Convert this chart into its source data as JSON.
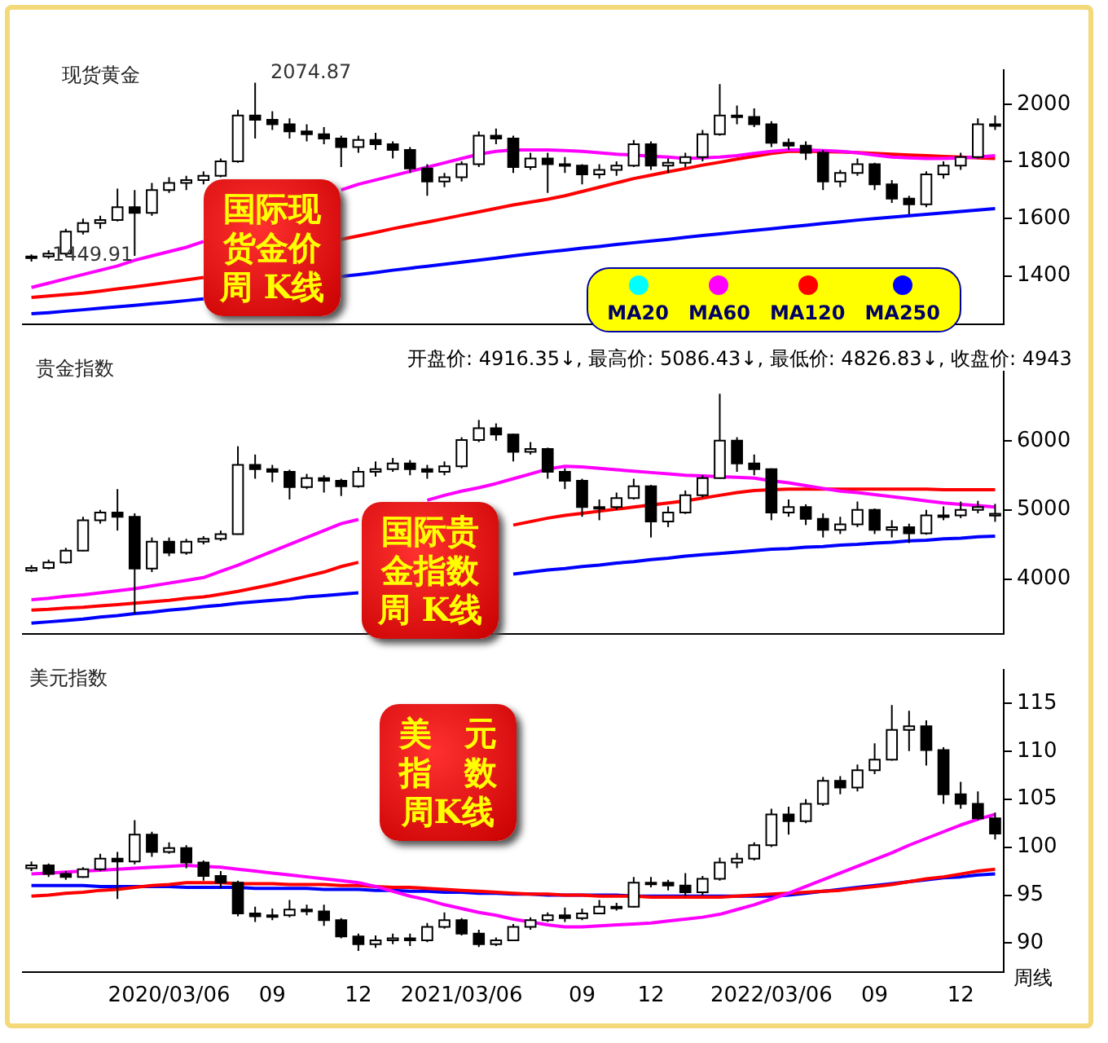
{
  "chart_data": [
    {
      "type": "candlestick",
      "title": "现货黄金",
      "categories": [
        null,
        null,
        null,
        null,
        null,
        null,
        null,
        null,
        null,
        null,
        null,
        null,
        null,
        null,
        null,
        null,
        null,
        null,
        null,
        null,
        null,
        null,
        null,
        null,
        null,
        null,
        null,
        null,
        null,
        null,
        null,
        null,
        null,
        null,
        null,
        null,
        null,
        null,
        null,
        null,
        null,
        null,
        null,
        null,
        null,
        null,
        null,
        null,
        null,
        null,
        null,
        null,
        null,
        null,
        null,
        null,
        null
      ],
      "tick_labels": "y",
      "ohlc": [
        [
          1462,
          1475,
          1449.91,
          1468
        ],
        [
          1468,
          1490,
          1460,
          1478
        ],
        [
          1478,
          1565,
          1470,
          1555
        ],
        [
          1555,
          1600,
          1545,
          1585
        ],
        [
          1585,
          1610,
          1565,
          1595
        ],
        [
          1595,
          1705,
          1590,
          1640
        ],
        [
          1640,
          1700,
          1470,
          1620
        ],
        [
          1620,
          1725,
          1610,
          1700
        ],
        [
          1700,
          1745,
          1690,
          1725
        ],
        [
          1725,
          1750,
          1700,
          1735
        ],
        [
          1735,
          1765,
          1720,
          1750
        ],
        [
          1750,
          1810,
          1745,
          1800
        ],
        [
          1800,
          1980,
          1795,
          1960
        ],
        [
          1960,
          2074.87,
          1880,
          1945
        ],
        [
          1945,
          1975,
          1910,
          1930
        ],
        [
          1930,
          1950,
          1880,
          1905
        ],
        [
          1905,
          1930,
          1870,
          1895
        ],
        [
          1895,
          1920,
          1860,
          1880
        ],
        [
          1880,
          1890,
          1780,
          1850
        ],
        [
          1850,
          1890,
          1830,
          1875
        ],
        [
          1875,
          1900,
          1840,
          1860
        ],
        [
          1860,
          1870,
          1810,
          1840
        ],
        [
          1840,
          1850,
          1760,
          1775
        ],
        [
          1775,
          1790,
          1680,
          1730
        ],
        [
          1730,
          1760,
          1710,
          1745
        ],
        [
          1745,
          1800,
          1730,
          1790
        ],
        [
          1790,
          1905,
          1780,
          1890
        ],
        [
          1890,
          1915,
          1860,
          1880
        ],
        [
          1880,
          1890,
          1760,
          1780
        ],
        [
          1780,
          1830,
          1770,
          1810
        ],
        [
          1810,
          1830,
          1690,
          1790
        ],
        [
          1790,
          1815,
          1760,
          1785
        ],
        [
          1785,
          1790,
          1720,
          1755
        ],
        [
          1755,
          1790,
          1740,
          1770
        ],
        [
          1770,
          1800,
          1750,
          1785
        ],
        [
          1785,
          1875,
          1780,
          1860
        ],
        [
          1860,
          1870,
          1770,
          1785
        ],
        [
          1785,
          1810,
          1760,
          1795
        ],
        [
          1795,
          1830,
          1780,
          1815
        ],
        [
          1815,
          1910,
          1800,
          1895
        ],
        [
          1895,
          2070,
          1890,
          1960
        ],
        [
          1960,
          1995,
          1930,
          1955
        ],
        [
          1955,
          1985,
          1920,
          1930
        ],
        [
          1930,
          1940,
          1850,
          1865
        ],
        [
          1865,
          1880,
          1840,
          1855
        ],
        [
          1855,
          1870,
          1805,
          1830
        ],
        [
          1830,
          1840,
          1700,
          1730
        ],
        [
          1730,
          1770,
          1710,
          1760
        ],
        [
          1760,
          1810,
          1750,
          1790
        ],
        [
          1790,
          1795,
          1700,
          1720
        ],
        [
          1720,
          1735,
          1655,
          1670
        ],
        [
          1670,
          1680,
          1615,
          1650
        ],
        [
          1650,
          1765,
          1640,
          1755
        ],
        [
          1755,
          1800,
          1740,
          1785
        ],
        [
          1785,
          1830,
          1770,
          1815
        ],
        [
          1815,
          1950,
          1810,
          1930
        ],
        [
          1930,
          1960,
          1910,
          1925
        ]
      ],
      "series": [
        {
          "name": "MA20",
          "type": "line",
          "color": "#00ffff",
          "values": [
            null,
            null,
            null,
            null,
            null,
            null,
            null,
            null,
            null,
            null,
            null,
            null,
            null,
            null,
            null,
            null,
            null,
            null,
            null,
            null,
            null,
            null,
            null,
            null,
            null,
            null,
            null,
            null,
            null,
            null,
            null,
            null,
            null,
            null,
            null,
            null,
            null,
            null,
            null,
            null,
            null,
            null,
            null,
            null,
            null,
            null,
            null,
            null,
            null,
            null,
            null,
            null,
            null,
            null,
            null,
            null,
            null
          ]
        },
        {
          "name": "MA60",
          "type": "line",
          "color": "#ff00ff",
          "values": [
            1360,
            1375,
            1390,
            1405,
            1420,
            1435,
            1455,
            1470,
            1485,
            1500,
            1520,
            null,
            null,
            null,
            null,
            null,
            null,
            null,
            1700,
            1720,
            1735,
            1750,
            1765,
            1780,
            1795,
            1810,
            1825,
            1835,
            1840,
            1840,
            1840,
            1838,
            1835,
            1830,
            1825,
            1822,
            1818,
            1815,
            1810,
            1812,
            1815,
            1820,
            1828,
            1835,
            1840,
            1840,
            1838,
            1835,
            1830,
            1822,
            1815,
            1812,
            1810,
            1810,
            1812,
            1815,
            1820
          ]
        },
        {
          "name": "MA120",
          "type": "line",
          "color": "#ff0000",
          "values": [
            1325,
            1330,
            1335,
            1340,
            1347,
            1355,
            1362,
            1370,
            1378,
            1386,
            1395,
            null,
            null,
            null,
            null,
            null,
            null,
            null,
            1528,
            1540,
            1552,
            1565,
            1577,
            1588,
            1600,
            1612,
            1624,
            1636,
            1648,
            1658,
            1668,
            1680,
            1695,
            1710,
            1725,
            1740,
            1752,
            1764,
            1775,
            1787,
            1797,
            1808,
            1818,
            1828,
            1835,
            1835,
            1834,
            1833,
            1831,
            1828,
            1825,
            1822,
            1820,
            1817,
            1815,
            1812,
            1810
          ]
        },
        {
          "name": "MA250",
          "type": "line",
          "color": "#0000ff",
          "values": [
            1268,
            1272,
            1277,
            1282,
            1287,
            1292,
            1297,
            1303,
            1308,
            1314,
            1320,
            null,
            null,
            null,
            null,
            null,
            null,
            null,
            1398,
            1405,
            1412,
            1420,
            1427,
            1434,
            1441,
            1448,
            1455,
            1462,
            1470,
            1477,
            1484,
            1490,
            1497,
            1503,
            1510,
            1516,
            1522,
            1528,
            1535,
            1541,
            1547,
            1553,
            1559,
            1565,
            1571,
            1577,
            1583,
            1589,
            1595,
            1600,
            1605,
            1610,
            1615,
            1620,
            1625,
            1630,
            1635
          ]
        }
      ],
      "ylim": [
        1230,
        2120
      ],
      "yticks": [
        1400,
        1600,
        1800,
        2000
      ],
      "legend": "bottom right",
      "annotations": [
        "2074.87",
        "1449.91",
        "国际现货金价周 K线"
      ]
    },
    {
      "type": "candlestick",
      "title": "贵金指数",
      "categories": [
        null,
        null,
        null,
        null,
        null,
        null,
        null,
        null,
        null,
        null,
        null,
        null,
        null,
        null,
        null,
        null,
        null,
        null,
        null,
        null,
        null,
        null,
        null,
        null,
        null,
        null,
        null,
        null,
        null,
        null,
        null,
        null,
        null,
        null,
        null,
        null,
        null,
        null,
        null,
        null,
        null,
        null,
        null,
        null,
        null,
        null,
        null,
        null,
        null,
        null,
        null,
        null,
        null,
        null,
        null,
        null,
        null
      ],
      "tick_labels": "y",
      "ohlc": [
        [
          4120,
          4200,
          4100,
          4160
        ],
        [
          4160,
          4280,
          4140,
          4240
        ],
        [
          4240,
          4450,
          4220,
          4410
        ],
        [
          4410,
          4900,
          4400,
          4850
        ],
        [
          4850,
          5000,
          4800,
          4960
        ],
        [
          4960,
          5300,
          4700,
          4900
        ],
        [
          4900,
          4950,
          3500,
          4150
        ],
        [
          4150,
          4600,
          4100,
          4540
        ],
        [
          4540,
          4600,
          4330,
          4380
        ],
        [
          4380,
          4580,
          4350,
          4540
        ],
        [
          4540,
          4620,
          4500,
          4580
        ],
        [
          4580,
          4700,
          4550,
          4650
        ],
        [
          4650,
          5920,
          4640,
          5650
        ],
        [
          5650,
          5800,
          5450,
          5590
        ],
        [
          5590,
          5650,
          5400,
          5550
        ],
        [
          5550,
          5580,
          5150,
          5330
        ],
        [
          5330,
          5520,
          5300,
          5460
        ],
        [
          5460,
          5500,
          5250,
          5420
        ],
        [
          5420,
          5450,
          5200,
          5340
        ],
        [
          5340,
          5620,
          5320,
          5550
        ],
        [
          5550,
          5700,
          5480,
          5590
        ],
        [
          5590,
          5750,
          5550,
          5670
        ],
        [
          5670,
          5720,
          5500,
          5590
        ],
        [
          5590,
          5650,
          5450,
          5550
        ],
        [
          5550,
          5700,
          5500,
          5630
        ],
        [
          5630,
          6050,
          5600,
          6010
        ],
        [
          6010,
          6300,
          5980,
          6180
        ],
        [
          6180,
          6250,
          6000,
          6090
        ],
        [
          6090,
          6100,
          5700,
          5840
        ],
        [
          5840,
          5980,
          5800,
          5880
        ],
        [
          5880,
          5900,
          5450,
          5550
        ],
        [
          5550,
          5600,
          5300,
          5420
        ],
        [
          5420,
          5450,
          4900,
          5040
        ],
        [
          5040,
          5150,
          4850,
          5040
        ],
        [
          5040,
          5250,
          5000,
          5170
        ],
        [
          5170,
          5450,
          5150,
          5340
        ],
        [
          5340,
          5360,
          4600,
          4830
        ],
        [
          4830,
          5050,
          4750,
          4960
        ],
        [
          4960,
          5280,
          4940,
          5210
        ],
        [
          5210,
          5500,
          5180,
          5460
        ],
        [
          5460,
          6680,
          5450,
          6000
        ],
        [
          6000,
          6050,
          5550,
          5670
        ],
        [
          5670,
          5800,
          5500,
          5590
        ],
        [
          5590,
          5600,
          4850,
          4960
        ],
        [
          4960,
          5150,
          4900,
          5040
        ],
        [
          5040,
          5080,
          4780,
          4870
        ],
        [
          4870,
          4950,
          4600,
          4710
        ],
        [
          4710,
          4900,
          4650,
          4790
        ],
        [
          4790,
          5120,
          4750,
          5000
        ],
        [
          5000,
          5020,
          4650,
          4710
        ],
        [
          4710,
          4850,
          4600,
          4750
        ],
        [
          4750,
          4800,
          4520,
          4660
        ],
        [
          4660,
          5000,
          4640,
          4920
        ],
        [
          4920,
          5050,
          4850,
          4920
        ],
        [
          4920,
          5120,
          4880,
          5000
        ],
        [
          5000,
          5130,
          4950,
          5040
        ],
        [
          4916.35,
          5086.43,
          4826.83,
          4943
        ]
      ],
      "series": [
        {
          "type": "line",
          "color": "#ff00ff",
          "values": [
            3700,
            3720,
            3750,
            3770,
            3800,
            3830,
            3860,
            3900,
            3940,
            3980,
            4020,
            4110,
            4200,
            4300,
            4400,
            4500,
            4600,
            4700,
            4800,
            4860,
            null,
            null,
            null,
            5140,
            5210,
            5270,
            5320,
            5380,
            5450,
            5520,
            5590,
            5630,
            5620,
            5600,
            5580,
            5560,
            5540,
            5520,
            5500,
            5490,
            5480,
            5470,
            5460,
            5420,
            5390,
            5350,
            5310,
            5270,
            5250,
            5220,
            5190,
            5160,
            5130,
            5100,
            5080,
            5060,
            5040
          ]
        },
        {
          "type": "line",
          "color": "#ff0000",
          "values": [
            3550,
            3560,
            3580,
            3590,
            3610,
            3630,
            3650,
            3670,
            3690,
            3720,
            3740,
            3780,
            3820,
            3870,
            3920,
            3980,
            4040,
            4100,
            4180,
            4240,
            null,
            null,
            null,
            null,
            null,
            null,
            null,
            null,
            4780,
            4830,
            4880,
            4920,
            4950,
            4980,
            5010,
            5040,
            5070,
            5100,
            5130,
            5170,
            5210,
            5250,
            5280,
            5290,
            5300,
            5300,
            5300,
            5300,
            5300,
            5300,
            5300,
            5300,
            5300,
            5290,
            5290,
            5290,
            5290
          ]
        },
        {
          "type": "line",
          "color": "#0000ff",
          "values": [
            3360,
            3380,
            3400,
            3420,
            3450,
            3470,
            3500,
            3520,
            3550,
            3570,
            3600,
            3620,
            3650,
            3670,
            3690,
            3710,
            3740,
            3760,
            3780,
            3800,
            null,
            null,
            null,
            null,
            null,
            null,
            null,
            null,
            4070,
            4100,
            4130,
            4150,
            4180,
            4200,
            4230,
            4250,
            4280,
            4300,
            4330,
            4350,
            4370,
            4390,
            4410,
            4430,
            4440,
            4460,
            4470,
            4490,
            4500,
            4520,
            4530,
            4550,
            4560,
            4580,
            4590,
            4610,
            4620
          ]
        }
      ],
      "ylim": [
        3200,
        7000
      ],
      "yticks": [
        4000,
        5000,
        6000
      ],
      "annotations": [
        "开盘价: 4916.35↓, 最高价: 5086.43↓, 最低价: 4826.83↓, 收盘价: 4943",
        "国际贵金指数周 K线"
      ]
    },
    {
      "type": "candlestick",
      "title": "美元指数",
      "categories": [
        null,
        null,
        null,
        null,
        null,
        null,
        null,
        null,
        "2020/03/06",
        null,
        null,
        null,
        null,
        null,
        "09",
        null,
        null,
        null,
        null,
        "12",
        null,
        null,
        null,
        null,
        null,
        "2021/03/06",
        null,
        null,
        null,
        null,
        null,
        null,
        "09",
        null,
        null,
        null,
        "12",
        null,
        null,
        null,
        null,
        null,
        null,
        "2022/03/06",
        null,
        null,
        null,
        null,
        null,
        "09",
        null,
        null,
        null,
        null,
        "12",
        null,
        null
      ],
      "ohlc": [
        [
          97.8,
          98.5,
          97.5,
          98.1
        ],
        [
          98.1,
          98.3,
          96.9,
          97.2
        ],
        [
          97.2,
          97.5,
          96.6,
          96.9
        ],
        [
          96.9,
          97.9,
          96.8,
          97.7
        ],
        [
          97.7,
          99.3,
          97.5,
          98.8
        ],
        [
          98.8,
          99.5,
          94.6,
          98.5
        ],
        [
          98.5,
          102.8,
          98.2,
          101.3
        ],
        [
          101.3,
          101.6,
          99.0,
          99.5
        ],
        [
          99.5,
          100.5,
          99.3,
          99.9
        ],
        [
          99.9,
          100.2,
          97.8,
          98.4
        ],
        [
          98.4,
          98.6,
          96.5,
          97.0
        ],
        [
          97.0,
          97.5,
          95.7,
          96.3
        ],
        [
          96.3,
          96.5,
          92.8,
          93.1
        ],
        [
          93.1,
          93.8,
          92.2,
          92.8
        ],
        [
          92.8,
          93.6,
          92.4,
          92.9
        ],
        [
          92.9,
          94.5,
          92.7,
          93.5
        ],
        [
          93.5,
          94.0,
          92.9,
          93.3
        ],
        [
          93.3,
          94.0,
          91.8,
          92.4
        ],
        [
          92.4,
          92.6,
          90.5,
          90.7
        ],
        [
          90.7,
          91.0,
          89.2,
          89.9
        ],
        [
          89.9,
          90.8,
          89.5,
          90.3
        ],
        [
          90.3,
          91.0,
          89.9,
          90.5
        ],
        [
          90.5,
          91.0,
          89.7,
          90.3
        ],
        [
          90.3,
          92.1,
          90.1,
          91.7
        ],
        [
          91.7,
          93.2,
          91.5,
          92.4
        ],
        [
          92.4,
          92.6,
          90.8,
          91.0
        ],
        [
          91.0,
          91.4,
          89.6,
          89.9
        ],
        [
          89.9,
          90.6,
          89.7,
          90.3
        ],
        [
          90.3,
          92.0,
          90.2,
          91.7
        ],
        [
          91.7,
          92.7,
          91.4,
          92.4
        ],
        [
          92.4,
          93.2,
          92.2,
          92.9
        ],
        [
          92.9,
          93.7,
          92.2,
          92.6
        ],
        [
          92.6,
          93.6,
          92.4,
          93.1
        ],
        [
          93.1,
          94.5,
          93.0,
          93.8
        ],
        [
          93.8,
          94.2,
          93.4,
          93.8
        ],
        [
          93.8,
          96.9,
          93.7,
          96.3
        ],
        [
          96.3,
          96.9,
          95.8,
          96.3
        ],
        [
          96.3,
          96.6,
          95.5,
          96.0
        ],
        [
          96.0,
          97.3,
          94.9,
          95.3
        ],
        [
          95.3,
          97.0,
          95.0,
          96.7
        ],
        [
          96.7,
          98.9,
          96.5,
          98.4
        ],
        [
          98.4,
          99.4,
          97.8,
          98.8
        ],
        [
          98.8,
          100.5,
          98.6,
          100.2
        ],
        [
          100.2,
          104.0,
          100.0,
          103.4
        ],
        [
          103.4,
          104.2,
          101.3,
          102.7
        ],
        [
          102.7,
          105.0,
          102.5,
          104.5
        ],
        [
          104.5,
          107.3,
          104.3,
          106.9
        ],
        [
          106.9,
          107.4,
          105.5,
          106.2
        ],
        [
          106.2,
          108.6,
          105.8,
          108.0
        ],
        [
          108.0,
          110.8,
          107.6,
          109.1
        ],
        [
          109.1,
          114.8,
          109.0,
          112.2
        ],
        [
          112.2,
          114.2,
          110.0,
          112.6
        ],
        [
          112.6,
          113.2,
          108.5,
          110.1
        ],
        [
          110.1,
          110.4,
          104.5,
          105.5
        ],
        [
          105.5,
          106.8,
          104.0,
          104.5
        ],
        [
          104.5,
          105.8,
          102.8,
          103.0
        ],
        [
          103.0,
          103.6,
          100.8,
          101.4
        ]
      ],
      "series": [
        {
          "type": "line",
          "color": "#ff00ff",
          "values": [
            97.2,
            97.3,
            97.4,
            97.5,
            97.6,
            97.7,
            97.8,
            97.9,
            98.0,
            98.1,
            98.0,
            97.9,
            97.7,
            97.5,
            97.3,
            97.1,
            96.9,
            96.7,
            96.5,
            96.3,
            95.9,
            95.4,
            94.9,
            94.5,
            94.0,
            93.6,
            93.2,
            92.9,
            92.5,
            92.2,
            91.9,
            91.7,
            91.7,
            91.8,
            91.9,
            92.0,
            92.1,
            92.3,
            92.5,
            92.7,
            93.0,
            93.5,
            94.0,
            94.6,
            95.2,
            95.9,
            96.6,
            97.3,
            98.0,
            98.7,
            99.4,
            100.2,
            100.9,
            101.6,
            102.3,
            102.9,
            103.4
          ]
        },
        {
          "type": "line",
          "color": "#ff0000",
          "values": [
            94.9,
            95.0,
            95.2,
            95.3,
            95.5,
            95.6,
            95.8,
            96.0,
            96.1,
            96.3,
            96.3,
            96.3,
            96.2,
            96.2,
            96.2,
            96.1,
            96.1,
            96.1,
            96.0,
            96.0,
            95.9,
            95.8,
            95.8,
            95.7,
            95.6,
            95.5,
            95.4,
            95.3,
            95.2,
            95.1,
            95.1,
            95.0,
            95.0,
            94.9,
            94.9,
            94.9,
            94.8,
            94.8,
            94.8,
            94.8,
            94.8,
            94.9,
            95.0,
            95.1,
            95.2,
            95.3,
            95.4,
            95.5,
            95.7,
            95.9,
            96.1,
            96.4,
            96.7,
            96.9,
            97.2,
            97.5,
            97.7
          ]
        },
        {
          "type": "line",
          "color": "#0000ff",
          "values": [
            96.0,
            96.0,
            96.0,
            96.0,
            95.9,
            95.9,
            95.9,
            95.9,
            95.9,
            95.8,
            95.8,
            95.8,
            95.8,
            95.7,
            95.7,
            95.7,
            95.7,
            95.6,
            95.6,
            95.6,
            95.5,
            95.5,
            95.4,
            95.4,
            95.3,
            95.3,
            95.2,
            95.2,
            95.1,
            95.1,
            95.0,
            95.0,
            95.0,
            95.0,
            95.0,
            94.9,
            94.9,
            94.9,
            94.9,
            94.9,
            94.9,
            94.9,
            94.9,
            94.9,
            95.0,
            95.2,
            95.4,
            95.6,
            95.8,
            96.0,
            96.2,
            96.4,
            96.6,
            96.8,
            96.9,
            97.1,
            97.2
          ]
        }
      ],
      "ylim": [
        87,
        118.5
      ],
      "yticks": [
        90,
        95,
        100,
        105,
        110,
        115
      ],
      "annotations": [
        "美　元指　数周K线",
        "周线"
      ]
    }
  ]
}
